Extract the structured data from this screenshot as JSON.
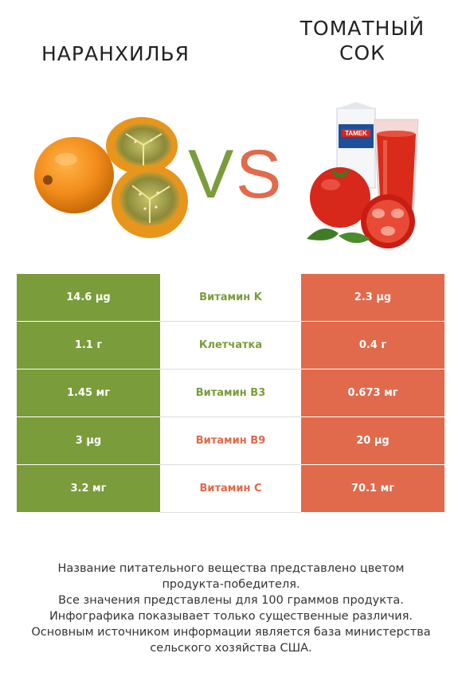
{
  "header": {
    "left_title": "НАРАНХИЛЬЯ",
    "right_title_line1": "ТОМАТНЫЙ",
    "right_title_line2": "СОК",
    "vs_v": "V",
    "vs_s": "S"
  },
  "colors": {
    "left": "#7a9c3a",
    "right": "#e06a4b"
  },
  "rows": [
    {
      "left": "14.6 µg",
      "nutrient": "Витамин K",
      "right": "2.3 µg",
      "winner": "left"
    },
    {
      "left": "1.1 г",
      "nutrient": "Клетчатка",
      "right": "0.4 г",
      "winner": "left"
    },
    {
      "left": "1.45 мг",
      "nutrient": "Витамин B3",
      "right": "0.673 мг",
      "winner": "left"
    },
    {
      "left": "3 µg",
      "nutrient": "Витамин B9",
      "right": "20 µg",
      "winner": "right"
    },
    {
      "left": "3.2 мг",
      "nutrient": "Витамин C",
      "right": "70.1 мг",
      "winner": "right"
    }
  ],
  "footer": {
    "line1": "Название питательного вещества представлено цветом",
    "line2": "продукта-победителя.",
    "line3": "Все значения представлены для 100 граммов продукта.",
    "line4": "Инфографика показывает только существенные различия.",
    "line5": "Основным источником информации является база министерства",
    "line6": "сельского хозяйства США."
  },
  "juice_brand": "TAMEK"
}
